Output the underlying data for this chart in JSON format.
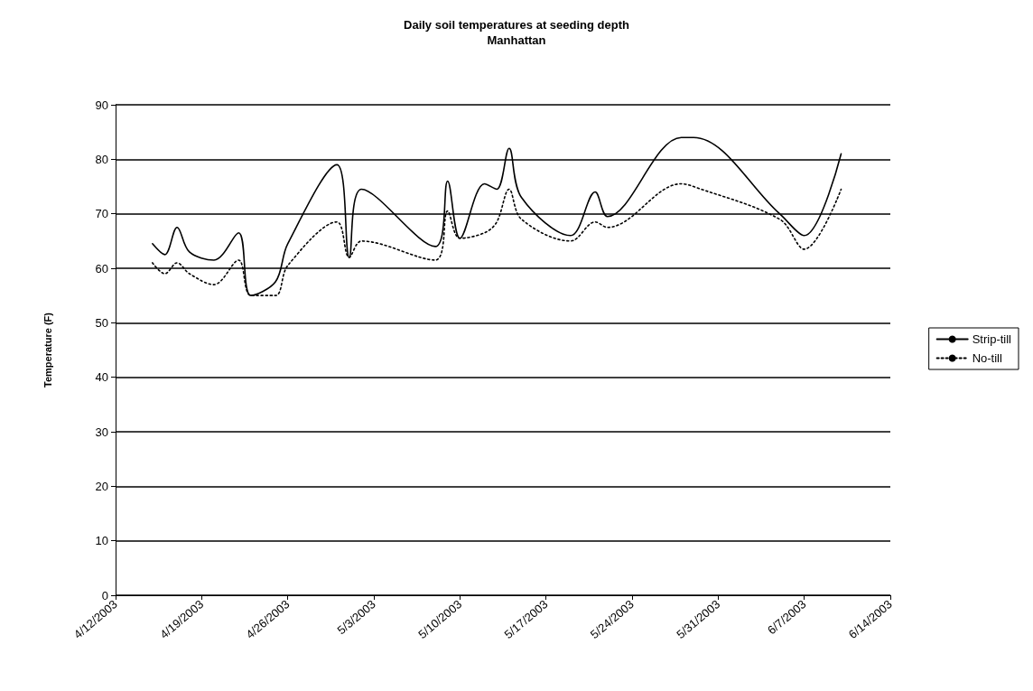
{
  "chart_data": {
    "type": "line",
    "title": "Daily soil temperatures at seeding depth",
    "subtitle": "Manhattan",
    "ylabel": "Temperature (F)",
    "x": [
      "2003-04-15",
      "2003-04-16",
      "2003-04-17",
      "2003-04-18",
      "2003-04-20",
      "2003-04-22",
      "2003-04-23",
      "2003-04-25",
      "2003-04-26",
      "2003-04-30",
      "2003-05-01",
      "2003-05-02",
      "2003-05-08",
      "2003-05-09",
      "2003-05-10",
      "2003-05-12",
      "2003-05-13",
      "2003-05-14",
      "2003-05-15",
      "2003-05-19",
      "2003-05-21",
      "2003-05-22",
      "2003-05-28",
      "2003-05-29",
      "2003-06-05",
      "2003-06-07",
      "2003-06-10"
    ],
    "series": [
      {
        "name": "Strip-till",
        "color": "#000000",
        "line_style": "solid",
        "values": [
          64.5,
          62.5,
          67.5,
          63,
          61.5,
          66.5,
          55,
          57.5,
          64.5,
          79,
          62,
          74.5,
          64,
          76,
          65.5,
          75.5,
          74.5,
          82,
          73,
          66,
          74,
          69.5,
          84,
          84,
          70,
          66,
          81
        ]
      },
      {
        "name": "No-till",
        "color": "#000000",
        "line_style": "dotted",
        "values": [
          61,
          59,
          61,
          59,
          57,
          61.5,
          55,
          55,
          60.5,
          68.5,
          62,
          65,
          61.5,
          70.5,
          65.5,
          66.5,
          68.5,
          74.5,
          69,
          65,
          68.5,
          67.5,
          75.5,
          75,
          69,
          63.5,
          74.5
        ]
      }
    ],
    "xlim": [
      "2003-04-12",
      "2003-06-14"
    ],
    "xticks": [
      {
        "value": "2003-04-12",
        "label": "4/12/2003"
      },
      {
        "value": "2003-04-19",
        "label": "4/19/2003"
      },
      {
        "value": "2003-04-26",
        "label": "4/26/2003"
      },
      {
        "value": "2003-05-03",
        "label": "5/3/2003"
      },
      {
        "value": "2003-05-10",
        "label": "5/10/2003"
      },
      {
        "value": "2003-05-17",
        "label": "5/17/2003"
      },
      {
        "value": "2003-05-24",
        "label": "5/24/2003"
      },
      {
        "value": "2003-05-31",
        "label": "5/31/2003"
      },
      {
        "value": "2003-06-07",
        "label": "6/7/2003"
      },
      {
        "value": "2003-06-14",
        "label": "6/14/2003"
      }
    ],
    "ylim": [
      0,
      90
    ],
    "yticks": [
      0,
      10,
      20,
      30,
      40,
      50,
      60,
      70,
      80,
      90
    ],
    "grid": "y",
    "legend": "right",
    "marker": "none"
  }
}
